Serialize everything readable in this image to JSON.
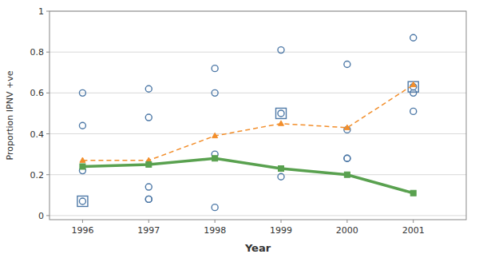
{
  "chart_data": {
    "type": "scatter",
    "xlabel": "Year",
    "ylabel": "Proportion IPNV +ve",
    "xlim": [
      1995.5,
      2001.8
    ],
    "ylim": [
      -0.02,
      1.0
    ],
    "xticks": [
      1996,
      1997,
      1998,
      1999,
      2000,
      2001
    ],
    "yticks": [
      0,
      0.2,
      0.4,
      0.6,
      0.8,
      1
    ],
    "grid": "y",
    "series": [
      {
        "type": "scatter",
        "marker": "circle",
        "x": [
          1996,
          1996,
          1996,
          1996,
          1997,
          1997,
          1997,
          1997,
          1997,
          1998,
          1998,
          1998,
          1998,
          1999,
          1999,
          1999,
          2000,
          2000,
          2000,
          2000,
          2001,
          2001,
          2001,
          2001
        ],
        "values": [
          0.07,
          0.22,
          0.44,
          0.6,
          0.08,
          0.08,
          0.14,
          0.48,
          0.62,
          0.04,
          0.3,
          0.6,
          0.72,
          0.19,
          0.5,
          0.81,
          0.28,
          0.28,
          0.42,
          0.74,
          0.51,
          0.6,
          0.63,
          0.87
        ]
      },
      {
        "type": "scatter",
        "marker": "square",
        "x": [
          1996,
          1999,
          2001
        ],
        "values": [
          0.07,
          0.5,
          0.63
        ]
      },
      {
        "type": "line",
        "marker": "triangle",
        "line_style": "dashed",
        "x": [
          1996,
          1997,
          1998,
          1999,
          2000,
          2001
        ],
        "values": [
          0.27,
          0.27,
          0.39,
          0.45,
          0.43,
          0.64
        ]
      },
      {
        "type": "line",
        "marker": "square",
        "line_style": "solid",
        "x": [
          1996,
          1997,
          1998,
          1999,
          2000,
          2001
        ],
        "values": [
          0.24,
          0.25,
          0.28,
          0.23,
          0.2,
          0.11
        ]
      }
    ]
  }
}
